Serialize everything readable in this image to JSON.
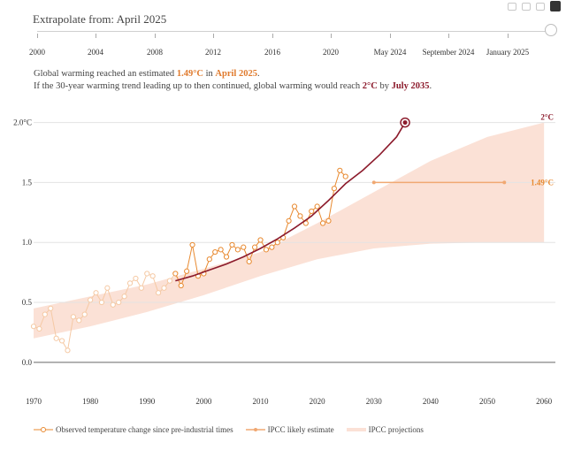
{
  "slider": {
    "title": "Extrapolate from: April 2025",
    "tick_labels": [
      "2000",
      "2004",
      "2008",
      "2012",
      "2016",
      "2020",
      "May 2024",
      "September 2024",
      "January 2025"
    ],
    "selected": "April 2025"
  },
  "summary": {
    "line1_prefix": "Global warming reached an estimated ",
    "line1_value": "1.49°C",
    "line1_mid": " in ",
    "line1_date": "April 2025",
    "line1_suffix": ".",
    "line2_prefix": "If the 30-year warming trend leading up to then continued, global warming would reach ",
    "line2_value": "2°C",
    "line2_mid": " by ",
    "line2_date": "July 2035",
    "line2_suffix": "."
  },
  "legend": {
    "observed": "Observed temperature change since pre-industrial times",
    "likely": "IPCC likely estimate",
    "projections": "IPCC projections"
  },
  "colors": {
    "observed": "#e8892f",
    "observed_faded": "#f5c9a4",
    "trend": "#8c1b2c",
    "band": "#fbe1d6",
    "likely": "#f0a872"
  },
  "chart_data": {
    "type": "line",
    "xlim": [
      1970,
      2062
    ],
    "ylim": [
      -0.2,
      2.1
    ],
    "x_ticks": [
      "1970",
      "1980",
      "1990",
      "2000",
      "2010",
      "2020",
      "2030",
      "2040",
      "2050",
      "2060"
    ],
    "y_ticks": [
      "0.0",
      "0.5",
      "1.0",
      "1.5",
      "2.0°C"
    ],
    "annotations": [
      "2°C",
      "1.49°C"
    ],
    "observed_faded_end": 1995,
    "series": [
      {
        "name": "Observed temperature change since pre-industrial times",
        "x": [
          1970,
          1971,
          1972,
          1973,
          1974,
          1975,
          1976,
          1977,
          1978,
          1979,
          1980,
          1981,
          1982,
          1983,
          1984,
          1985,
          1986,
          1987,
          1988,
          1989,
          1990,
          1991,
          1992,
          1993,
          1994,
          1995,
          1996,
          1997,
          1998,
          1999,
          2000,
          2001,
          2002,
          2003,
          2004,
          2005,
          2006,
          2007,
          2008,
          2009,
          2010,
          2011,
          2012,
          2013,
          2014,
          2015,
          2016,
          2017,
          2018,
          2019,
          2020,
          2021,
          2022,
          2023,
          2024,
          2025
        ],
        "y": [
          0.3,
          0.28,
          0.4,
          0.45,
          0.2,
          0.18,
          0.1,
          0.38,
          0.35,
          0.4,
          0.52,
          0.58,
          0.5,
          0.62,
          0.48,
          0.5,
          0.55,
          0.66,
          0.7,
          0.62,
          0.74,
          0.72,
          0.58,
          0.62,
          0.68,
          0.74,
          0.64,
          0.76,
          0.98,
          0.72,
          0.74,
          0.86,
          0.92,
          0.94,
          0.88,
          0.98,
          0.94,
          0.96,
          0.84,
          0.96,
          1.02,
          0.94,
          0.96,
          1.0,
          1.04,
          1.18,
          1.3,
          1.22,
          1.16,
          1.26,
          1.3,
          1.16,
          1.18,
          1.45,
          1.6,
          1.55
        ]
      },
      {
        "name": "",
        "x": [
          1995,
          1998,
          2001,
          2004,
          2007,
          2010,
          2013,
          2016,
          2019,
          2022,
          2025,
          2028,
          2031,
          2034,
          2035.5
        ],
        "y": [
          0.68,
          0.72,
          0.77,
          0.82,
          0.88,
          0.95,
          1.03,
          1.12,
          1.22,
          1.35,
          1.49,
          1.6,
          1.73,
          1.88,
          2.0
        ]
      },
      {
        "name": "IPCC likely estimate",
        "x": [
          2030,
          2053
        ],
        "y": [
          1.5,
          1.5
        ]
      }
    ],
    "band": {
      "name": "IPCC projections",
      "x": [
        1970,
        1980,
        1990,
        2000,
        2010,
        2020,
        2030,
        2040,
        2050,
        2060
      ],
      "lower": [
        0.2,
        0.3,
        0.42,
        0.56,
        0.72,
        0.86,
        0.95,
        0.99,
        1.0,
        1.0
      ],
      "upper": [
        0.45,
        0.55,
        0.65,
        0.78,
        0.92,
        1.16,
        1.42,
        1.68,
        1.88,
        2.0
      ]
    }
  }
}
